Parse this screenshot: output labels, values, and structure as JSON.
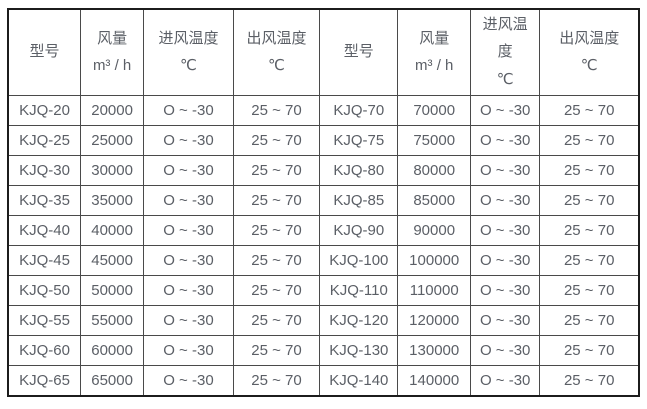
{
  "colors": {
    "text": "#5b5f66",
    "border": "#4a4a4a",
    "border_outer": "#1c1c1c",
    "background": "#ffffff"
  },
  "chart_data": {
    "type": "table",
    "title": "",
    "columns": [
      "型号",
      "风量\nm³ / h",
      "进风温度\n℃",
      "出风温度\n℃",
      "型号",
      "风量\nm³ / h",
      "进风温\n度\n℃",
      "出风温度\n℃"
    ],
    "rows": [
      [
        "KJQ-20",
        "20000",
        "O ~ -30",
        "25 ~ 70",
        "KJQ-70",
        "70000",
        "O ~ -30",
        "25 ~ 70"
      ],
      [
        "KJQ-25",
        "25000",
        "O ~ -30",
        "25 ~ 70",
        "KJQ-75",
        "75000",
        "O ~ -30",
        "25 ~ 70"
      ],
      [
        "KJQ-30",
        "30000",
        "O ~ -30",
        "25 ~ 70",
        "KJQ-80",
        "80000",
        "O ~ -30",
        "25 ~ 70"
      ],
      [
        "KJQ-35",
        "35000",
        "O ~ -30",
        "25 ~ 70",
        "KJQ-85",
        "85000",
        "O ~ -30",
        "25 ~ 70"
      ],
      [
        "KJQ-40",
        "40000",
        "O ~ -30",
        "25 ~ 70",
        "KJQ-90",
        "90000",
        "O ~ -30",
        "25 ~ 70"
      ],
      [
        "KJQ-45",
        "45000",
        "O ~ -30",
        "25 ~ 70",
        "KJQ-100",
        "100000",
        "O ~ -30",
        "25 ~ 70"
      ],
      [
        "KJQ-50",
        "50000",
        "O ~ -30",
        "25 ~ 70",
        "KJQ-110",
        "110000",
        "O ~ -30",
        "25 ~ 70"
      ],
      [
        "KJQ-55",
        "55000",
        "O ~ -30",
        "25 ~ 70",
        "KJQ-120",
        "120000",
        "O ~ -30",
        "25 ~ 70"
      ],
      [
        "KJQ-60",
        "60000",
        "O ~ -30",
        "25 ~ 70",
        "KJQ-130",
        "130000",
        "O ~ -30",
        "25 ~ 70"
      ],
      [
        "KJQ-65",
        "65000",
        "O ~ -30",
        "25 ~ 70",
        "KJQ-140",
        "140000",
        "O ~ -30",
        "25 ~ 70"
      ]
    ]
  }
}
